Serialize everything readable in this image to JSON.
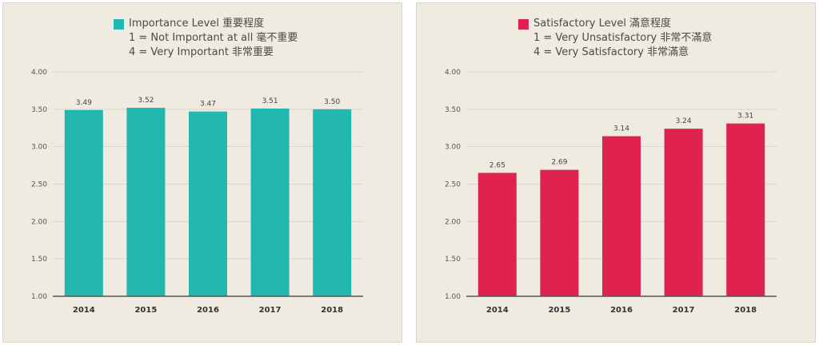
{
  "chart_data": [
    {
      "type": "bar",
      "legend": {
        "label": "Importance Level 重要程度",
        "note1": "1 = Not Important at all 毫不重要",
        "note2": "4 = Very Important 非常重要"
      },
      "color": "#22b8b0",
      "categories": [
        "2014",
        "2015",
        "2016",
        "2017",
        "2018"
      ],
      "values": [
        3.49,
        3.52,
        3.47,
        3.51,
        3.5
      ],
      "value_labels": [
        "3.49",
        "3.52",
        "3.47",
        "3.51",
        "3.50"
      ],
      "ylim": [
        1.0,
        4.0
      ],
      "yticks": [
        "1.00",
        "1.50",
        "2.00",
        "2.50",
        "3.00",
        "3.50",
        "4.00"
      ],
      "grid": true,
      "legend_position": "top"
    },
    {
      "type": "bar",
      "legend": {
        "label": "Satisfactory Level 滿意程度",
        "note1": "1 = Very Unsatisfactory 非常不滿意",
        "note2": "4 = Very Satisfactory 非常滿意"
      },
      "color": "#e0234e",
      "categories": [
        "2014",
        "2015",
        "2016",
        "2017",
        "2018"
      ],
      "values": [
        2.65,
        2.69,
        3.14,
        3.24,
        3.31
      ],
      "value_labels": [
        "2.65",
        "2.69",
        "3.14",
        "3.24",
        "3.31"
      ],
      "ylim": [
        1.0,
        4.0
      ],
      "yticks": [
        "1.00",
        "1.50",
        "2.00",
        "2.50",
        "3.00",
        "3.50",
        "4.00"
      ],
      "grid": true,
      "legend_position": "top"
    }
  ]
}
